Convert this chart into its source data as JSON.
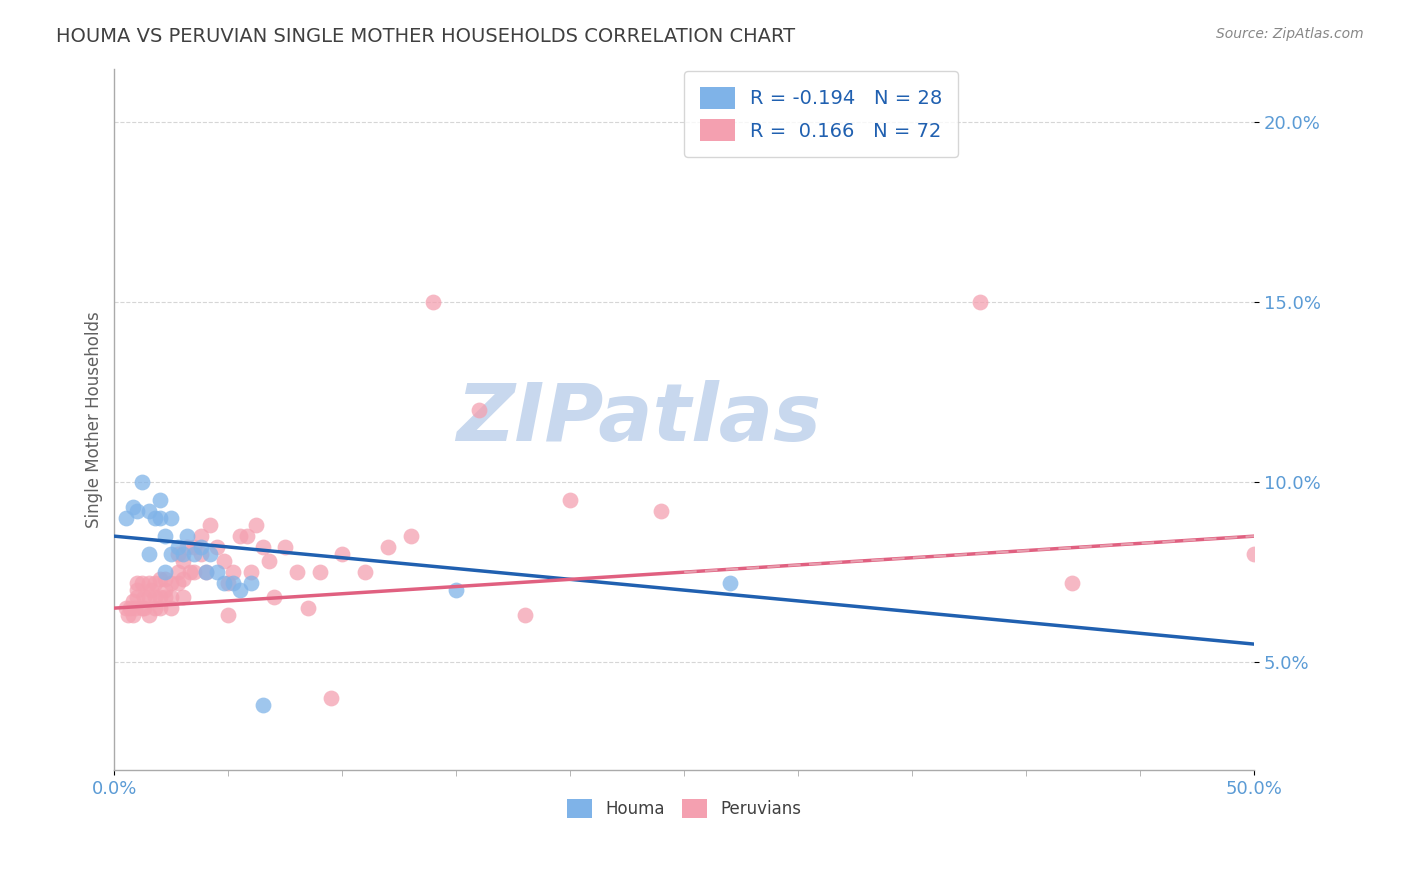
{
  "title": "HOUMA VS PERUVIAN SINGLE MOTHER HOUSEHOLDS CORRELATION CHART",
  "source": "Source: ZipAtlas.com",
  "ylabel": "Single Mother Households",
  "xlim": [
    0.0,
    0.5
  ],
  "ylim": [
    0.02,
    0.215
  ],
  "houma_color": "#7fb3e8",
  "peruvian_color": "#f4a0b0",
  "houma_line_color": "#2060b0",
  "peruvian_line_color": "#e06080",
  "peruvian_dash_color": "#e8a0b0",
  "houma_R": -0.194,
  "houma_N": 28,
  "peruvian_R": 0.166,
  "peruvian_N": 72,
  "houma_x": [
    0.005,
    0.008,
    0.01,
    0.012,
    0.015,
    0.015,
    0.018,
    0.02,
    0.02,
    0.022,
    0.022,
    0.025,
    0.025,
    0.028,
    0.03,
    0.032,
    0.035,
    0.038,
    0.04,
    0.042,
    0.045,
    0.048,
    0.052,
    0.055,
    0.06,
    0.065,
    0.15,
    0.27
  ],
  "houma_y": [
    0.09,
    0.093,
    0.092,
    0.1,
    0.092,
    0.08,
    0.09,
    0.09,
    0.095,
    0.085,
    0.075,
    0.09,
    0.08,
    0.082,
    0.08,
    0.085,
    0.08,
    0.082,
    0.075,
    0.08,
    0.075,
    0.072,
    0.072,
    0.07,
    0.072,
    0.038,
    0.07,
    0.072
  ],
  "peruvian_x": [
    0.005,
    0.006,
    0.007,
    0.008,
    0.008,
    0.009,
    0.01,
    0.01,
    0.01,
    0.012,
    0.012,
    0.013,
    0.013,
    0.015,
    0.015,
    0.015,
    0.016,
    0.018,
    0.018,
    0.018,
    0.02,
    0.02,
    0.02,
    0.022,
    0.022,
    0.022,
    0.025,
    0.025,
    0.025,
    0.028,
    0.028,
    0.028,
    0.03,
    0.03,
    0.03,
    0.032,
    0.033,
    0.035,
    0.035,
    0.038,
    0.038,
    0.04,
    0.042,
    0.045,
    0.048,
    0.05,
    0.05,
    0.052,
    0.055,
    0.058,
    0.06,
    0.062,
    0.065,
    0.068,
    0.07,
    0.075,
    0.08,
    0.085,
    0.09,
    0.095,
    0.1,
    0.11,
    0.12,
    0.13,
    0.14,
    0.16,
    0.18,
    0.2,
    0.24,
    0.38,
    0.42,
    0.5
  ],
  "peruvian_y": [
    0.065,
    0.063,
    0.065,
    0.063,
    0.067,
    0.065,
    0.068,
    0.07,
    0.072,
    0.065,
    0.072,
    0.065,
    0.068,
    0.063,
    0.068,
    0.072,
    0.07,
    0.068,
    0.072,
    0.065,
    0.065,
    0.068,
    0.073,
    0.068,
    0.07,
    0.073,
    0.065,
    0.068,
    0.072,
    0.072,
    0.075,
    0.08,
    0.068,
    0.073,
    0.078,
    0.082,
    0.075,
    0.075,
    0.082,
    0.08,
    0.085,
    0.075,
    0.088,
    0.082,
    0.078,
    0.063,
    0.072,
    0.075,
    0.085,
    0.085,
    0.075,
    0.088,
    0.082,
    0.078,
    0.068,
    0.082,
    0.075,
    0.065,
    0.075,
    0.04,
    0.08,
    0.075,
    0.082,
    0.085,
    0.15,
    0.12,
    0.063,
    0.095,
    0.092,
    0.15,
    0.072,
    0.08
  ],
  "background_color": "#ffffff",
  "grid_color": "#cccccc",
  "title_color": "#404040",
  "axis_label_color": "#606060",
  "tick_label_color": "#5b9bd5",
  "watermark_text": "ZIPatlas",
  "watermark_color": "#c8d8ee"
}
